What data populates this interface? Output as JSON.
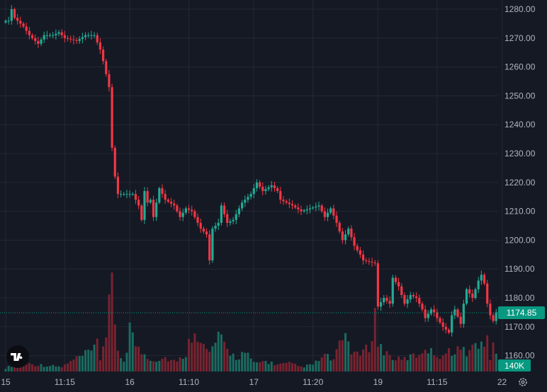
{
  "chart_data": {
    "type": "candlestick",
    "title": "",
    "xlabel": "",
    "ylabel": "",
    "ylim": [
      1155,
      1283
    ],
    "y_ticks": [
      1160,
      1170,
      1180,
      1190,
      1200,
      1210,
      1220,
      1230,
      1240,
      1250,
      1260,
      1270,
      1280
    ],
    "y_tick_labels": [
      "1160.00",
      "1170.00",
      "1180.00",
      "1190.00",
      "1200.00",
      "1210.00",
      "1220.00",
      "1230.00",
      "1240.00",
      "1250.00",
      "1260.00",
      "1270.00",
      "1280.00"
    ],
    "x_ticks": [
      {
        "label": "15",
        "bar": 0
      },
      {
        "label": "11:15",
        "bar": 20
      },
      {
        "label": "16",
        "bar": 42
      },
      {
        "label": "11:10",
        "bar": 62
      },
      {
        "label": "17",
        "bar": 84
      },
      {
        "label": "11:20",
        "bar": 104
      },
      {
        "label": "19",
        "bar": 126
      },
      {
        "label": "11:15",
        "bar": 146
      },
      {
        "label": "22",
        "bar": 168
      }
    ],
    "last_price": 1174.85,
    "last_price_label": "1174.85",
    "last_volume_label": "140K",
    "volume_max": 900000,
    "price_anchors": [
      [
        0,
        1276
      ],
      [
        1,
        1276
      ],
      [
        2,
        1280
      ],
      [
        3,
        1277
      ],
      [
        6,
        1274
      ],
      [
        8,
        1271
      ],
      [
        11,
        1268
      ],
      [
        13,
        1271
      ],
      [
        16,
        1271
      ],
      [
        18,
        1272
      ],
      [
        20,
        1270
      ],
      [
        24,
        1269
      ],
      [
        27,
        1271
      ],
      [
        30,
        1271
      ],
      [
        32,
        1266
      ],
      [
        33,
        1262
      ],
      [
        35,
        1253
      ],
      [
        36,
        1232
      ],
      [
        37,
        1222
      ],
      [
        38,
        1216
      ],
      [
        40,
        1216
      ],
      [
        43,
        1216
      ],
      [
        45,
        1212
      ],
      [
        46,
        1207
      ],
      [
        47,
        1217
      ],
      [
        48,
        1213
      ],
      [
        49,
        1214
      ],
      [
        50,
        1208
      ],
      [
        52,
        1218
      ],
      [
        54,
        1214
      ],
      [
        57,
        1212
      ],
      [
        59,
        1208
      ],
      [
        61,
        1211
      ],
      [
        63,
        1210
      ],
      [
        66,
        1204
      ],
      [
        68,
        1202
      ],
      [
        69,
        1193
      ],
      [
        70,
        1204
      ],
      [
        72,
        1206
      ],
      [
        73,
        1212
      ],
      [
        75,
        1206
      ],
      [
        77,
        1207
      ],
      [
        80,
        1213
      ],
      [
        83,
        1216
      ],
      [
        85,
        1220
      ],
      [
        87,
        1217
      ],
      [
        90,
        1219
      ],
      [
        92,
        1217
      ],
      [
        93,
        1214
      ],
      [
        97,
        1212
      ],
      [
        100,
        1210
      ],
      [
        103,
        1211
      ],
      [
        106,
        1212
      ],
      [
        108,
        1208
      ],
      [
        110,
        1211
      ],
      [
        112,
        1206
      ],
      [
        114,
        1200
      ],
      [
        116,
        1204
      ],
      [
        118,
        1198
      ],
      [
        120,
        1195
      ],
      [
        121,
        1193
      ],
      [
        125,
        1192
      ],
      [
        126,
        1177
      ],
      [
        128,
        1180
      ],
      [
        130,
        1178
      ],
      [
        131,
        1187
      ],
      [
        133,
        1184
      ],
      [
        135,
        1178
      ],
      [
        137,
        1181
      ],
      [
        139,
        1180
      ],
      [
        141,
        1176
      ],
      [
        142,
        1173
      ],
      [
        144,
        1176
      ],
      [
        145,
        1175
      ],
      [
        146,
        1173
      ],
      [
        148,
        1170
      ],
      [
        150,
        1168
      ],
      [
        151,
        1174
      ],
      [
        152,
        1176
      ],
      [
        154,
        1171
      ],
      [
        155,
        1178
      ],
      [
        156,
        1183
      ],
      [
        158,
        1180
      ],
      [
        160,
        1186
      ],
      [
        161,
        1188
      ],
      [
        162,
        1185
      ],
      [
        163,
        1178
      ],
      [
        164,
        1174
      ],
      [
        165,
        1172
      ],
      [
        166,
        1175
      ]
    ],
    "volume_anchors": [
      [
        0,
        30000
      ],
      [
        5,
        80000
      ],
      [
        10,
        60000
      ],
      [
        15,
        50000
      ],
      [
        19,
        40000
      ],
      [
        23,
        100000
      ],
      [
        27,
        150000
      ],
      [
        30,
        190000
      ],
      [
        31,
        260000
      ],
      [
        32,
        110000
      ],
      [
        34,
        350000
      ],
      [
        35,
        650000
      ],
      [
        36,
        700000
      ],
      [
        37,
        340000
      ],
      [
        38,
        180000
      ],
      [
        40,
        90000
      ],
      [
        41,
        210000
      ],
      [
        42,
        420000
      ],
      [
        43,
        300000
      ],
      [
        45,
        190000
      ],
      [
        47,
        150000
      ],
      [
        50,
        100000
      ],
      [
        54,
        120000
      ],
      [
        58,
        80000
      ],
      [
        61,
        160000
      ],
      [
        64,
        420000
      ],
      [
        66,
        240000
      ],
      [
        69,
        160000
      ],
      [
        72,
        300000
      ],
      [
        75,
        190000
      ],
      [
        78,
        120000
      ],
      [
        81,
        170000
      ],
      [
        84,
        70000
      ],
      [
        88,
        90000
      ],
      [
        92,
        60000
      ],
      [
        96,
        70000
      ],
      [
        100,
        40000
      ],
      [
        104,
        60000
      ],
      [
        108,
        140000
      ],
      [
        111,
        100000
      ],
      [
        113,
        220000
      ],
      [
        115,
        330000
      ],
      [
        117,
        190000
      ],
      [
        119,
        140000
      ],
      [
        121,
        170000
      ],
      [
        123,
        210000
      ],
      [
        125,
        500000
      ],
      [
        126,
        240000
      ],
      [
        128,
        180000
      ],
      [
        131,
        120000
      ],
      [
        134,
        100000
      ],
      [
        137,
        130000
      ],
      [
        140,
        150000
      ],
      [
        142,
        220000
      ],
      [
        144,
        170000
      ],
      [
        147,
        140000
      ],
      [
        150,
        170000
      ],
      [
        153,
        200000
      ],
      [
        156,
        170000
      ],
      [
        159,
        230000
      ],
      [
        161,
        270000
      ],
      [
        162,
        180000
      ],
      [
        163,
        320000
      ],
      [
        164,
        120000
      ],
      [
        165,
        260000
      ],
      [
        166,
        140000
      ]
    ]
  },
  "branding": {
    "logo_text": "TV",
    "logo_icon": "tradingview-logo"
  },
  "controls": {
    "settings_icon": "gear-icon"
  },
  "colors": {
    "background": "#151924",
    "grid": "#242833",
    "up": "#22ab94",
    "down": "#f23645",
    "up_volume": "#1b6b60",
    "down_volume": "#7a2330",
    "axis_text": "#b2b5be",
    "last_price_bg": "#089981"
  }
}
